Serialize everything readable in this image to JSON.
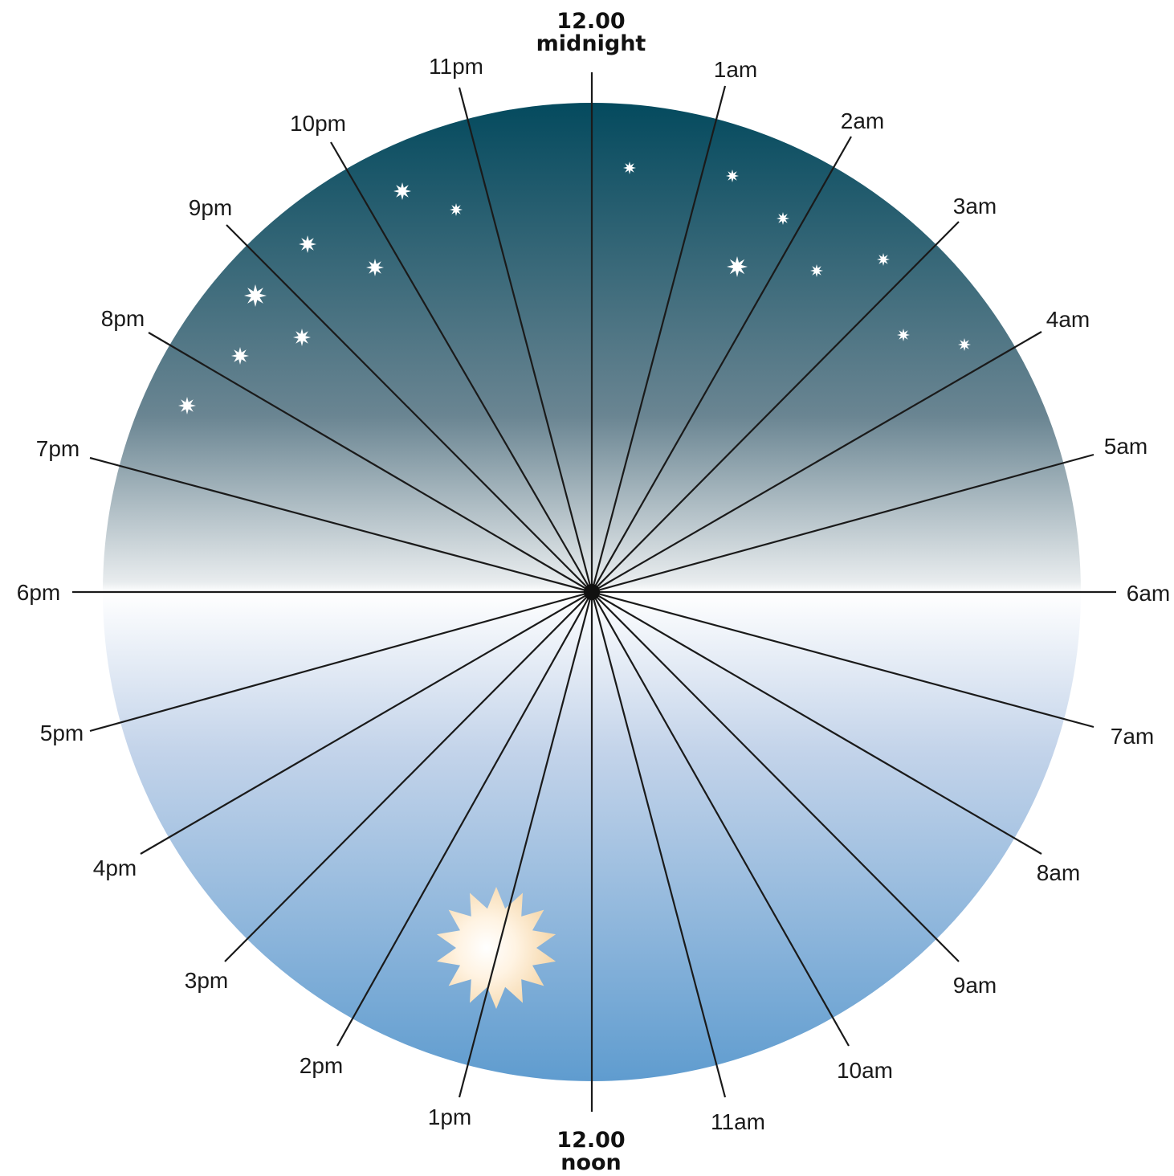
{
  "top_label": {
    "time": "12.00",
    "word": "midnight"
  },
  "bottom_label": {
    "time": "12.00",
    "word": "noon"
  },
  "hours": [
    {
      "id": "1am",
      "label": "1am"
    },
    {
      "id": "2am",
      "label": "2am"
    },
    {
      "id": "3am",
      "label": "3am"
    },
    {
      "id": "4am",
      "label": "4am"
    },
    {
      "id": "5am",
      "label": "5am"
    },
    {
      "id": "6am",
      "label": "6am"
    },
    {
      "id": "7am",
      "label": "7am"
    },
    {
      "id": "8am",
      "label": "8am"
    },
    {
      "id": "9am",
      "label": "9am"
    },
    {
      "id": "10am",
      "label": "10am"
    },
    {
      "id": "11am",
      "label": "11am"
    },
    {
      "id": "1pm",
      "label": "1pm"
    },
    {
      "id": "2pm",
      "label": "2pm"
    },
    {
      "id": "3pm",
      "label": "3pm"
    },
    {
      "id": "4pm",
      "label": "4pm"
    },
    {
      "id": "5pm",
      "label": "5pm"
    },
    {
      "id": "6pm",
      "label": "6pm"
    },
    {
      "id": "7pm",
      "label": "7pm"
    },
    {
      "id": "8pm",
      "label": "8pm"
    },
    {
      "id": "9pm",
      "label": "9pm"
    },
    {
      "id": "10pm",
      "label": "10pm"
    },
    {
      "id": "11pm",
      "label": "11pm"
    }
  ],
  "icons": {
    "stars": "star-icon",
    "sun": "sun-icon"
  },
  "colors": {
    "night_top": "#044a5e",
    "night_mid": "#6a8592",
    "horizon": "#ffffff",
    "day_mid": "#c4d4ea",
    "day_bottom": "#5f9ccf",
    "sun_fill": "#f6d9ae"
  }
}
